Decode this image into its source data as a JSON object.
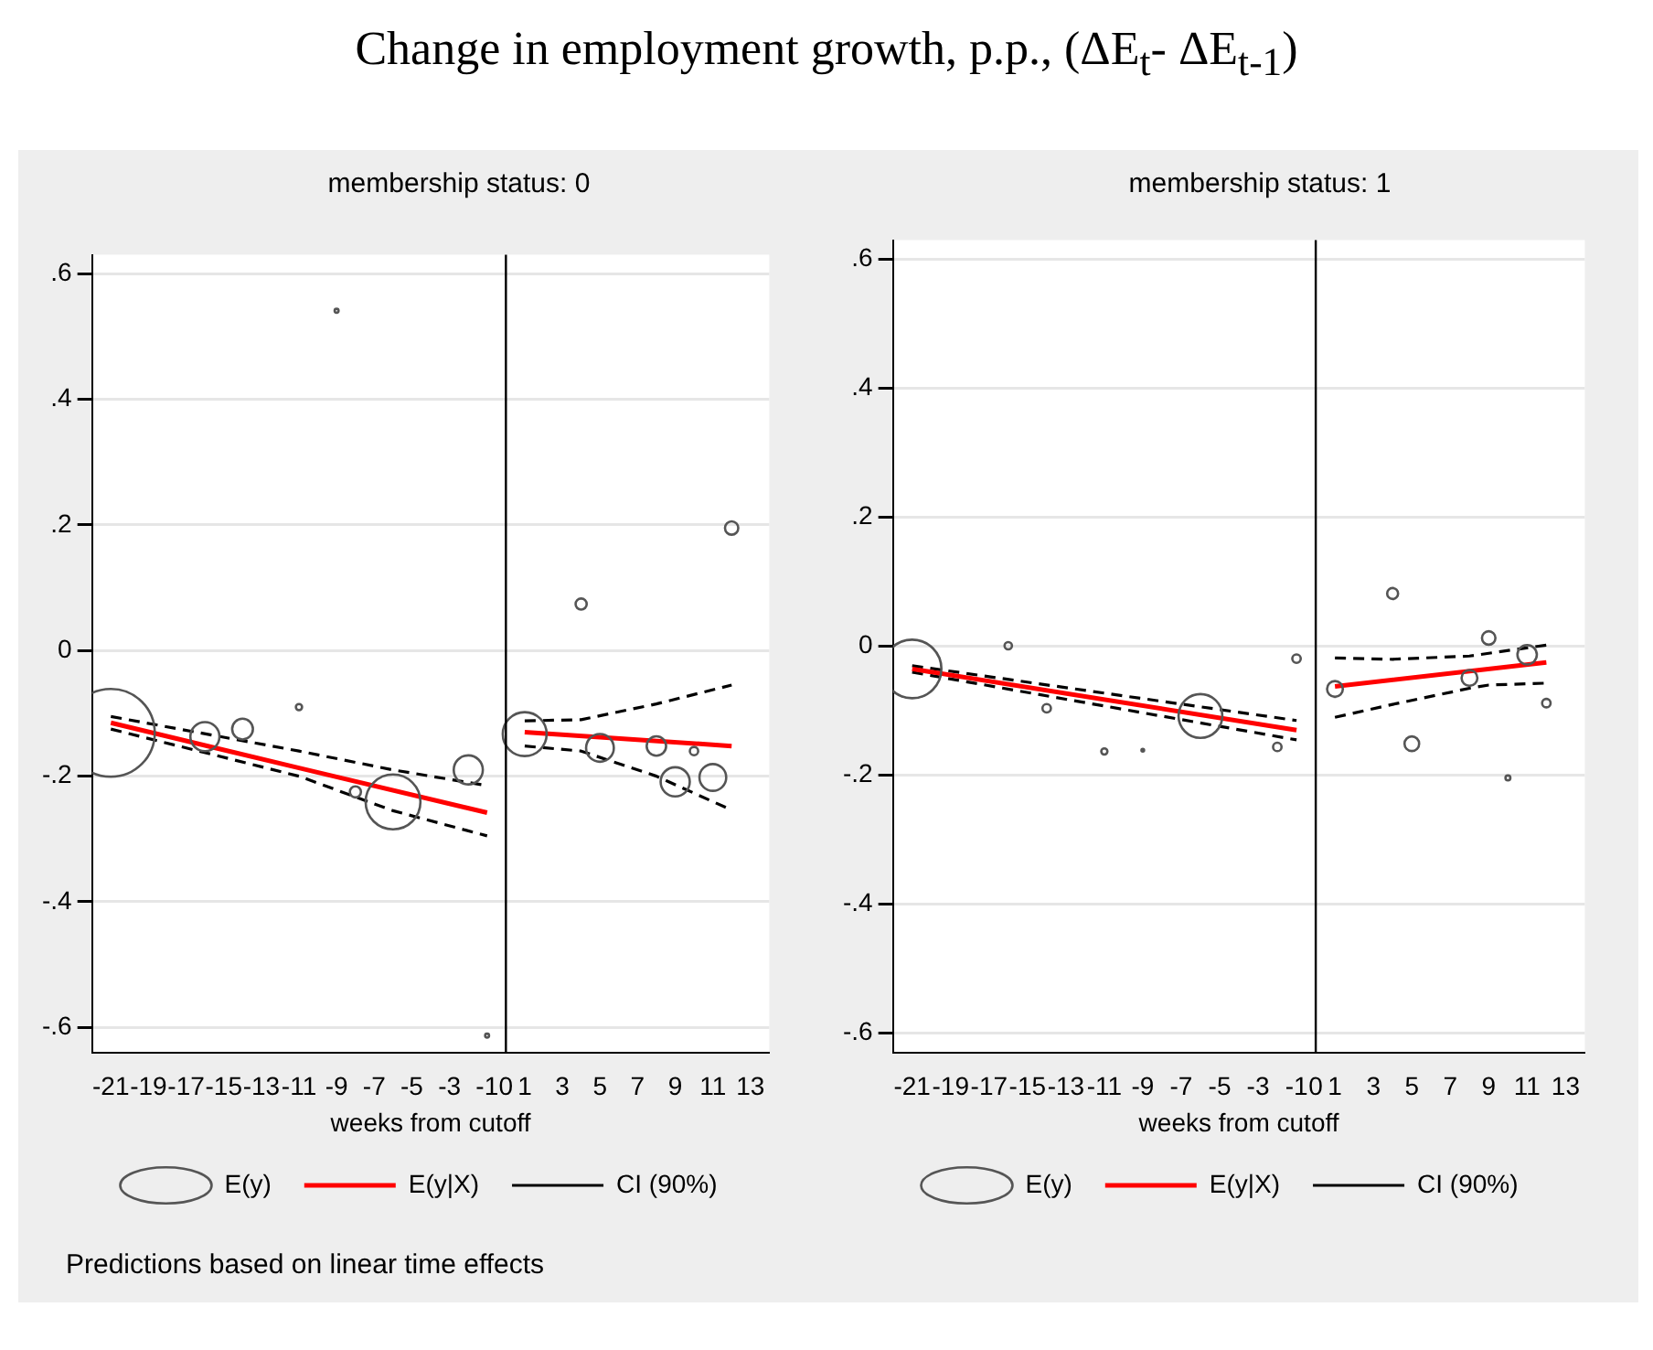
{
  "chart_data": [
    {
      "type": "bubble",
      "title": "Change in employment growth, p.p., (ΔE$_{t}$- ΔE$_{t-1}$)",
      "subtitle": "membership status: 0",
      "xlabel": "weeks from cutoff",
      "annotations": [
        "Predictions based on linear time effects"
      ],
      "xlim": [
        -22,
        14
      ],
      "xticks": [
        -21,
        -19,
        -17,
        -15,
        -13,
        -11,
        -9,
        -7,
        -5,
        -3,
        -1,
        0,
        1,
        3,
        5,
        7,
        9,
        11,
        13
      ],
      "ylim": [
        -0.64,
        0.63
      ],
      "yticks": [
        {
          "value": -0.6,
          "label": "-.6"
        },
        {
          "value": -0.4,
          "label": "-.4"
        },
        {
          "value": -0.2,
          "label": "-.2"
        },
        {
          "value": 0,
          "label": "0"
        },
        {
          "value": 0.2,
          "label": ".2"
        },
        {
          "value": 0.4,
          "label": ".4"
        },
        {
          "value": 0.6,
          "label": ".6"
        }
      ],
      "grid": "y",
      "legend": "bottom",
      "ref_lines": [
        {
          "axis": "x",
          "value": 0,
          "color": "#000000"
        }
      ],
      "series": [
        {
          "name": "E(y)",
          "color": "#555555",
          "x": [
            -21,
            -16,
            -14,
            -11,
            -9,
            -8,
            -6,
            -2,
            -1,
            1,
            4,
            5,
            8,
            9,
            10,
            11,
            12
          ],
          "values": [
            -0.131,
            -0.137,
            -0.125,
            -0.09,
            0.541,
            -0.225,
            -0.241,
            -0.19,
            -0.613,
            -0.133,
            0.074,
            -0.155,
            -0.152,
            -0.209,
            -0.16,
            -0.202,
            0.195
          ],
          "sizes": [
            1,
            0.11,
            0.056,
            0.005,
            0.002,
            0.016,
            0.39,
            0.11,
            0.002,
            0.25,
            0.016,
            0.1,
            0.049,
            0.11,
            0.009,
            0.093,
            0.023
          ]
        },
        {
          "name": "E(y|X)",
          "type": "line",
          "color": "#ff0000",
          "line_style": "solid",
          "x": [
            -21,
            -11,
            -1,
            0,
            1,
            12
          ],
          "values": [
            -0.115,
            -0.187,
            -0.258,
            null,
            -0.13,
            -0.152
          ]
        },
        {
          "name": "CI (90%)",
          "type": "line",
          "color": "#000000",
          "line_style": "dashed",
          "x": [
            -21,
            -11,
            -6,
            -1,
            0,
            1,
            4,
            8,
            12
          ],
          "values": [
            -0.105,
            -0.16,
            -0.19,
            -0.215,
            null,
            -0.112,
            -0.11,
            -0.085,
            -0.055
          ]
        },
        {
          "type": "line",
          "color": "#000000",
          "line_style": "dashed",
          "x": [
            -21,
            -11,
            -6,
            -1,
            0,
            1,
            4,
            8,
            12
          ],
          "values": [
            -0.125,
            -0.2,
            -0.255,
            -0.295,
            null,
            -0.152,
            -0.16,
            -0.2,
            -0.254
          ]
        }
      ]
    },
    {
      "type": "bubble",
      "subtitle": "membership status: 1",
      "xlabel": "weeks from cutoff",
      "xlim": [
        -22,
        14
      ],
      "xticks": [
        -21,
        -19,
        -17,
        -15,
        -13,
        -11,
        -9,
        -7,
        -5,
        -3,
        -1,
        0,
        1,
        3,
        5,
        7,
        9,
        11,
        13
      ],
      "ylim": [
        -0.63,
        0.63
      ],
      "yticks": [
        {
          "value": -0.6,
          "label": "-.6"
        },
        {
          "value": -0.4,
          "label": "-.4"
        },
        {
          "value": -0.2,
          "label": "-.2"
        },
        {
          "value": 0,
          "label": "0"
        },
        {
          "value": 0.2,
          "label": ".2"
        },
        {
          "value": 0.4,
          "label": ".4"
        },
        {
          "value": 0.6,
          "label": ".6"
        }
      ],
      "grid": "y",
      "legend": "bottom",
      "ref_lines": [
        {
          "axis": "x",
          "value": 0,
          "color": "#000000"
        }
      ],
      "series": [
        {
          "name": "E(y)",
          "color": "#555555",
          "x": [
            -21,
            -16,
            -14,
            -11,
            -9,
            -6,
            -2,
            -1,
            1,
            4,
            5,
            8,
            9,
            10,
            11,
            12
          ],
          "values": [
            -0.035,
            0.001,
            -0.096,
            -0.163,
            -0.161,
            -0.108,
            -0.156,
            -0.019,
            -0.066,
            0.082,
            -0.151,
            -0.049,
            0.013,
            -0.204,
            -0.013,
            -0.088
          ],
          "sizes": [
            1,
            0.016,
            0.021,
            0.011,
            0.002,
            0.56,
            0.021,
            0.021,
            0.073,
            0.035,
            0.0625,
            0.073,
            0.053,
            0.007,
            0.11,
            0.021
          ]
        },
        {
          "name": "E(y|X)",
          "type": "line",
          "color": "#ff0000",
          "line_style": "solid",
          "x": [
            -21,
            -1,
            0,
            1,
            12
          ],
          "values": [
            -0.035,
            -0.13,
            null,
            -0.062,
            -0.025
          ]
        },
        {
          "name": "CI (90%)",
          "type": "line",
          "color": "#000000",
          "line_style": "dashed",
          "x": [
            -21,
            -1,
            0,
            1,
            4,
            8,
            12
          ],
          "values": [
            -0.03,
            -0.115,
            null,
            -0.018,
            -0.02,
            -0.015,
            0.002
          ]
        },
        {
          "type": "line",
          "color": "#000000",
          "line_style": "dashed",
          "x": [
            -21,
            -1,
            0,
            1,
            4,
            8,
            9,
            12
          ],
          "values": [
            -0.04,
            -0.145,
            null,
            -0.11,
            -0.09,
            -0.065,
            -0.06,
            -0.057
          ]
        }
      ]
    }
  ]
}
